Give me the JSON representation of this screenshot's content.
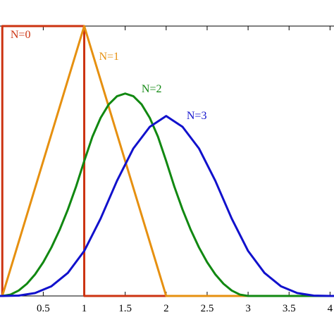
{
  "chart_data": {
    "type": "line",
    "title": "",
    "xlabel": "",
    "ylabel": "",
    "xlim": [
      -0.2,
      4.1
    ],
    "ylim": [
      0,
      1
    ],
    "grid": false,
    "legend": "none",
    "x_ticks": [
      {
        "value": 0.5,
        "label": "0.5"
      },
      {
        "value": 1,
        "label": "1"
      },
      {
        "value": 1.5,
        "label": "1.5"
      },
      {
        "value": 2,
        "label": "2"
      },
      {
        "value": 2.5,
        "label": "2.5"
      },
      {
        "value": 3,
        "label": "3"
      },
      {
        "value": 3.5,
        "label": "3.5"
      },
      {
        "value": 4,
        "label": "4"
      }
    ],
    "series": [
      {
        "name": "N=0",
        "color": "#cc3311",
        "label_at": {
          "x": 0.1,
          "y": 0.955
        },
        "x": [
          -0.2,
          0,
          0,
          1,
          1,
          4.1
        ],
        "y": [
          0,
          0,
          1,
          1,
          0,
          0
        ]
      },
      {
        "name": "N=1",
        "color": "#e69010",
        "label_at": {
          "x": 1.18,
          "y": 0.875
        },
        "x": [
          -0.2,
          0,
          1,
          2,
          4.1
        ],
        "y": [
          0,
          0,
          1,
          0,
          0
        ]
      },
      {
        "name": "N=2",
        "color": "#118811",
        "label_at": {
          "x": 1.7,
          "y": 0.755
        },
        "x": [
          -0.2,
          0,
          0.1,
          0.2,
          0.3,
          0.4,
          0.5,
          0.6,
          0.7,
          0.8,
          0.9,
          1.0,
          1.1,
          1.2,
          1.3,
          1.4,
          1.5,
          1.6,
          1.7,
          1.8,
          1.9,
          2.0,
          2.1,
          2.2,
          2.3,
          2.4,
          2.5,
          2.6,
          2.7,
          2.8,
          2.9,
          3.0,
          4.1
        ],
        "y": [
          0,
          0,
          0.005,
          0.02,
          0.045,
          0.08,
          0.125,
          0.18,
          0.245,
          0.32,
          0.405,
          0.5,
          0.59,
          0.66,
          0.71,
          0.74,
          0.75,
          0.74,
          0.71,
          0.66,
          0.59,
          0.5,
          0.405,
          0.32,
          0.245,
          0.18,
          0.125,
          0.08,
          0.045,
          0.02,
          0.005,
          0,
          0
        ]
      },
      {
        "name": "N=3",
        "color": "#1111cc",
        "label_at": {
          "x": 2.25,
          "y": 0.655
        },
        "x": [
          -0.2,
          0,
          0.2,
          0.4,
          0.6,
          0.8,
          1.0,
          1.2,
          1.4,
          1.6,
          1.8,
          2.0,
          2.2,
          2.4,
          2.6,
          2.8,
          3.0,
          3.2,
          3.4,
          3.6,
          3.8,
          4.0,
          4.1
        ],
        "y": [
          0,
          0,
          0.0013,
          0.0107,
          0.036,
          0.0853,
          0.1667,
          0.2867,
          0.4267,
          0.5467,
          0.6267,
          0.6667,
          0.6267,
          0.5467,
          0.4267,
          0.2867,
          0.1667,
          0.0853,
          0.036,
          0.0107,
          0.0013,
          0,
          0
        ]
      }
    ]
  }
}
